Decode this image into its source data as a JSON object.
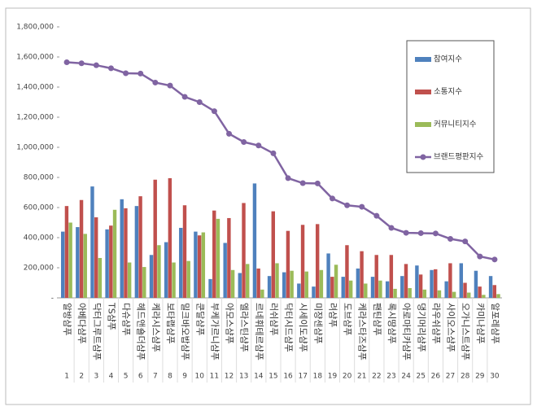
{
  "chart_data": {
    "type": "bar-line",
    "categories": [
      "알방샴푸",
      "아베다샴푸",
      "닥터그루트샴푸",
      "TS샴푸",
      "다슈샴푸",
      "헤드앤숄더샴푸",
      "케라시스샴푸",
      "보타랩샴푸",
      "밀크바오밥샴푸",
      "쿤달샴푸",
      "부케가르니샴푸",
      "아모스샴푸",
      "엘라스틴샴푸",
      "르네휘테르샴푸",
      "러쉬샴푸",
      "닥터시드샴푸",
      "시세이도샴푸",
      "미쟝센샴푸",
      "려샴푸",
      "도브샴푸",
      "케라스타즈샴푸",
      "팬틴샴푸",
      "록시땅샴푸",
      "아로마티카샴푸",
      "댕기머리샴푸",
      "라우쉬샴푸",
      "사이오스샴푸",
      "오가니스트샴푸",
      "카미나샴푸",
      "알포레샴푸"
    ],
    "category_numbers": [
      1,
      2,
      3,
      4,
      5,
      6,
      7,
      8,
      9,
      10,
      11,
      12,
      13,
      14,
      15,
      16,
      17,
      18,
      19,
      20,
      21,
      22,
      23,
      24,
      25,
      26,
      27,
      28,
      29,
      30
    ],
    "ylim": [
      0,
      1800000
    ],
    "yticks": [
      {
        "value": 0,
        "label": "-"
      },
      {
        "value": 200000,
        "label": "200,000"
      },
      {
        "value": 400000,
        "label": "400,000"
      },
      {
        "value": 600000,
        "label": "600,000"
      },
      {
        "value": 800000,
        "label": "800,000"
      },
      {
        "value": 1000000,
        "label": "1,000,000"
      },
      {
        "value": 1200000,
        "label": "1,200,000"
      },
      {
        "value": 1400000,
        "label": "1,400,000"
      },
      {
        "value": 1600000,
        "label": "1,600,000"
      },
      {
        "value": 1800000,
        "label": "1,800,000"
      }
    ],
    "series": [
      {
        "name": "참여지수",
        "color": "#4f81bd",
        "kind": "bar",
        "values": [
          440000,
          470000,
          740000,
          455000,
          655000,
          610000,
          285000,
          370000,
          465000,
          440000,
          125000,
          365000,
          165000,
          760000,
          145000,
          170000,
          95000,
          75000,
          295000,
          140000,
          195000,
          140000,
          110000,
          145000,
          215000,
          185000,
          110000,
          230000,
          180000,
          145000
        ]
      },
      {
        "name": "소통지수",
        "color": "#c0504d",
        "kind": "bar",
        "values": [
          610000,
          650000,
          535000,
          480000,
          595000,
          675000,
          785000,
          795000,
          615000,
          415000,
          580000,
          530000,
          630000,
          195000,
          575000,
          445000,
          485000,
          490000,
          140000,
          350000,
          310000,
          285000,
          285000,
          225000,
          155000,
          190000,
          230000,
          100000,
          75000,
          85000
        ]
      },
      {
        "name": "커뮤니티지수",
        "color": "#9bbb59",
        "kind": "bar",
        "values": [
          500000,
          425000,
          265000,
          585000,
          235000,
          205000,
          350000,
          235000,
          245000,
          435000,
          525000,
          185000,
          225000,
          55000,
          230000,
          180000,
          175000,
          185000,
          220000,
          115000,
          95000,
          115000,
          60000,
          65000,
          55000,
          50000,
          40000,
          35000,
          20000,
          25000
        ]
      },
      {
        "name": "브랜드평판지수",
        "color": "#8064a2",
        "kind": "line",
        "values": [
          1565000,
          1558000,
          1545000,
          1525000,
          1492000,
          1490000,
          1430000,
          1410000,
          1335000,
          1300000,
          1240000,
          1090000,
          1035000,
          1012000,
          960000,
          795000,
          762000,
          760000,
          660000,
          615000,
          605000,
          545000,
          465000,
          432000,
          430000,
          428000,
          392000,
          375000,
          275000,
          255000
        ]
      }
    ],
    "legend": "right"
  }
}
